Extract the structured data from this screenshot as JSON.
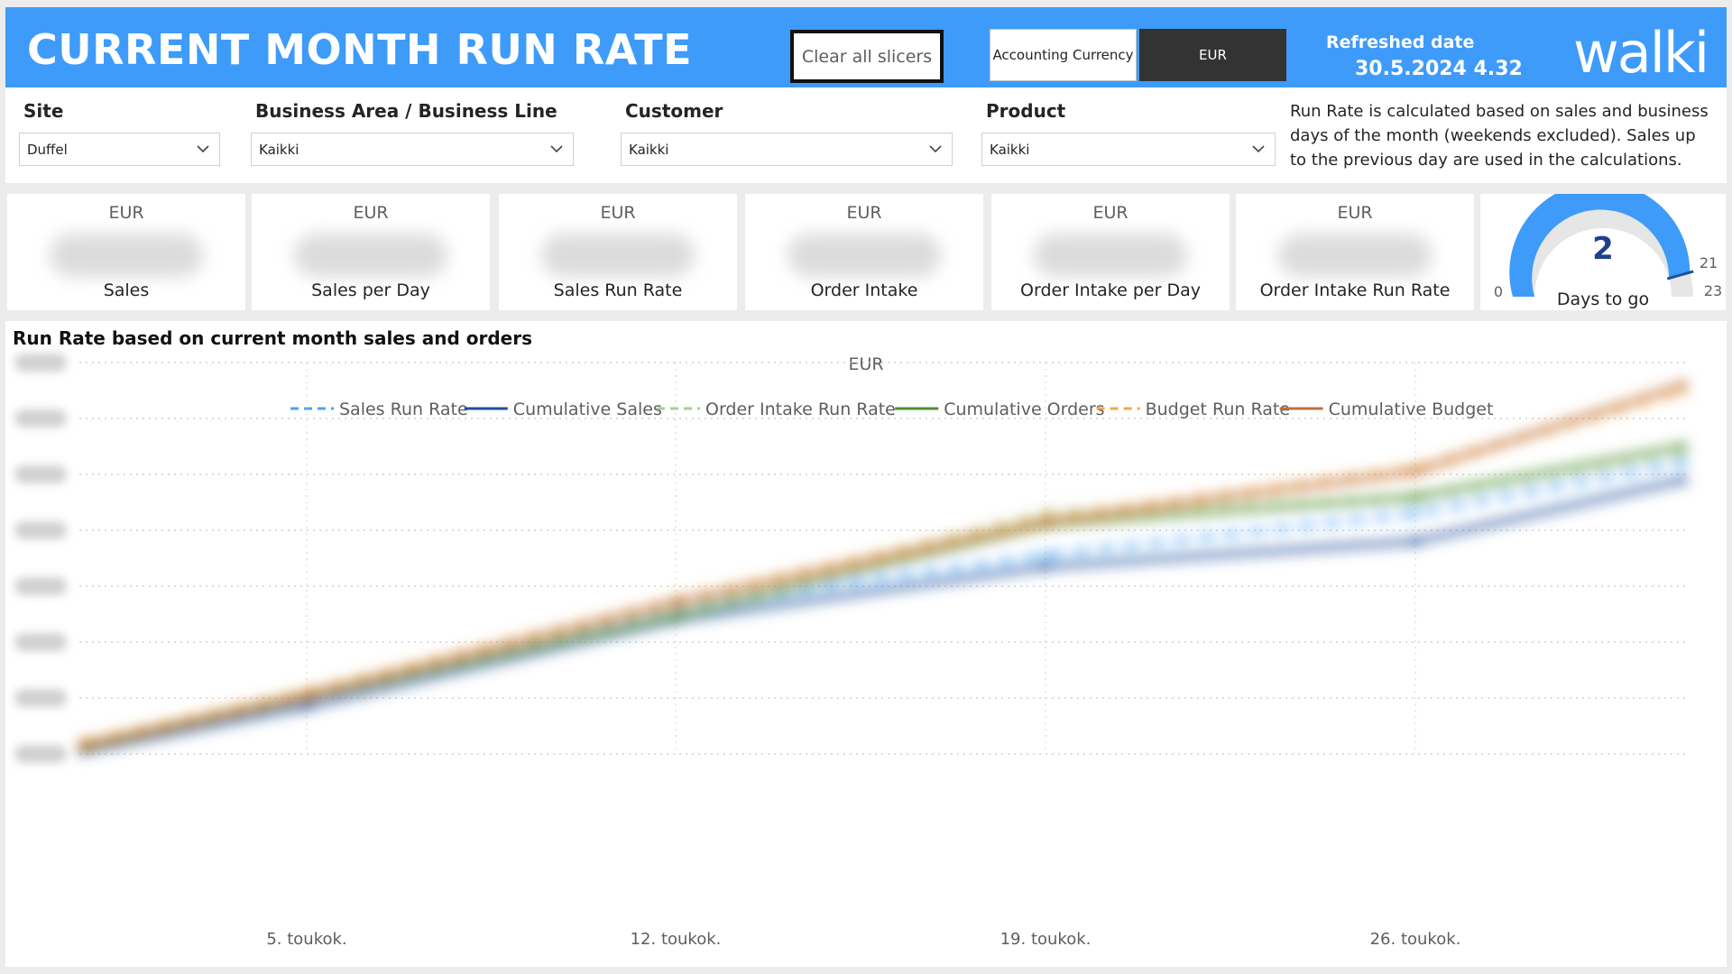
{
  "header": {
    "title": "CURRENT MONTH RUN RATE",
    "clear_button": "Clear all slicers",
    "currency_toggle": {
      "option_accounting": "Accounting Currency",
      "option_eur": "EUR",
      "selected": "EUR"
    },
    "refreshed_label": "Refreshed date",
    "refreshed_value": "30.5.2024 4.32",
    "logo_text": "walki",
    "colors": {
      "header_bg": "#3e9bf9",
      "toggle_selected_bg": "#333333"
    }
  },
  "filters": {
    "site": {
      "label": "Site",
      "value": "Duffel"
    },
    "business_area": {
      "label": "Business Area / Business Line",
      "value": "Kaikki"
    },
    "customer": {
      "label": "Customer",
      "value": "Kaikki"
    },
    "product": {
      "label": "Product",
      "value": "Kaikki"
    },
    "info": "Run Rate is calculated based on sales and business days of the month (weekends excluded). Sales up to the previous day are used in the calculations.",
    "chevron_icon": "chevron-down-icon"
  },
  "kpis": [
    {
      "unit": "EUR",
      "label": "Sales"
    },
    {
      "unit": "EUR",
      "label": "Sales per Day"
    },
    {
      "unit": "EUR",
      "label": "Sales Run Rate"
    },
    {
      "unit": "EUR",
      "label": "Order Intake"
    },
    {
      "unit": "EUR",
      "label": "Order Intake per Day"
    },
    {
      "unit": "EUR",
      "label": "Order Intake Run Rate"
    }
  ],
  "gauge": {
    "value": 2,
    "value_text": "2",
    "label": "Days to go",
    "min_text": "0",
    "max_text": "23",
    "target_text": "21",
    "min": 0,
    "max": 23,
    "target": 21,
    "fill_color": "#3e9bf9",
    "track_color": "#e6e6e6"
  },
  "chart": {
    "title": "Run Rate based on current month sales and orders",
    "unit_label": "EUR",
    "x_tick_labels": [
      "5. toukok.",
      "12. toukok.",
      "19. toukok.",
      "26. toukok."
    ],
    "legend": [
      {
        "name": "Sales Run Rate",
        "color": "#4aa3f5",
        "dashed": true
      },
      {
        "name": "Cumulative Sales",
        "color": "#1f4e9c",
        "dashed": false
      },
      {
        "name": "Order Intake Run Rate",
        "color": "#a9d18e",
        "dashed": true
      },
      {
        "name": "Cumulative Orders",
        "color": "#4e8f2f",
        "dashed": false
      },
      {
        "name": "Budget Run Rate",
        "color": "#f4a742",
        "dashed": true
      },
      {
        "name": "Cumulative Budget",
        "color": "#c0703a",
        "dashed": false
      }
    ]
  },
  "chart_data": {
    "type": "line",
    "unit_label": "EUR",
    "x": [
      "1. toukok.",
      "5. toukok.",
      "12. toukok.",
      "19. toukok.",
      "26. toukok.",
      "31. toukok."
    ],
    "x_tick_labels": [
      "5. toukok.",
      "12. toukok.",
      "19. toukok.",
      "26. toukok."
    ],
    "ylim": [
      0,
      7
    ],
    "y_tick_labels_visible": false,
    "grid": true,
    "legend_position": "top-center",
    "series": [
      {
        "name": "Sales Run Rate",
        "dashed": true,
        "values": [
          0.1,
          0.95,
          2.6,
          3.55,
          4.3,
          5.2
        ]
      },
      {
        "name": "Cumulative Sales",
        "dashed": false,
        "values": [
          0.05,
          0.85,
          2.4,
          3.35,
          3.8,
          4.9
        ]
      },
      {
        "name": "Order Intake Run Rate",
        "dashed": true,
        "values": [
          0.15,
          1.05,
          2.55,
          4.3,
          4.55,
          5.4
        ]
      },
      {
        "name": "Cumulative Orders",
        "dashed": false,
        "values": [
          0.1,
          1.0,
          2.45,
          4.1,
          4.6,
          5.5
        ]
      },
      {
        "name": "Budget Run Rate",
        "dashed": true,
        "values": [
          0.2,
          1.1,
          2.75,
          4.2,
          5.1,
          6.5
        ]
      },
      {
        "name": "Cumulative Budget",
        "dashed": false,
        "values": [
          0.15,
          1.05,
          2.7,
          4.15,
          5.05,
          6.6
        ]
      }
    ]
  }
}
